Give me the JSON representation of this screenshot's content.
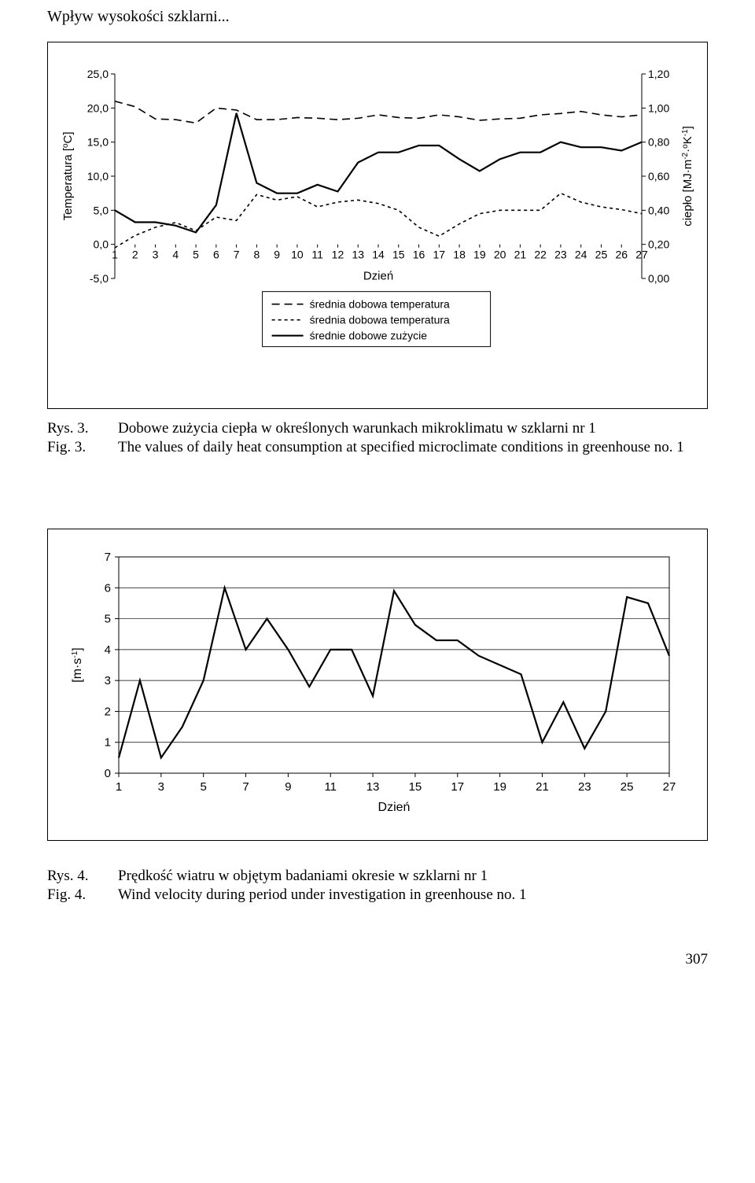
{
  "header": "Wpływ wysokości szklarni...",
  "chart1": {
    "type": "line",
    "left_axis_label": "Temperatura [oC]",
    "right_axis_label": "ciepło [MJ·m-2·oK-1]",
    "x_axis_label": "Dzień",
    "x_categories": [
      "1",
      "2",
      "3",
      "4",
      "5",
      "6",
      "7",
      "8",
      "9",
      "10",
      "11",
      "12",
      "13",
      "14",
      "15",
      "16",
      "17",
      "18",
      "19",
      "20",
      "21",
      "22",
      "23",
      "24",
      "25",
      "26",
      "27"
    ],
    "left_ticks": [
      "-5,0",
      "0,0",
      "5,0",
      "10,0",
      "15,0",
      "20,0",
      "25,0"
    ],
    "left_values": [
      -5,
      0,
      5,
      10,
      15,
      20,
      25
    ],
    "right_ticks": [
      "0,00",
      "0,20",
      "0,40",
      "0,60",
      "0,80",
      "1,00",
      "1,20"
    ],
    "right_values": [
      0,
      0.2,
      0.4,
      0.6,
      0.8,
      1.0,
      1.2
    ],
    "series": {
      "longdash": {
        "label": "średnia dobowa temperatura",
        "dash": "10,6",
        "width": 1.6,
        "color": "#000000",
        "axis": "left",
        "values": [
          21.0,
          20.2,
          18.4,
          18.3,
          17.8,
          20.0,
          19.7,
          18.3,
          18.3,
          18.6,
          18.5,
          18.3,
          18.5,
          19.0,
          18.6,
          18.5,
          19.0,
          18.7,
          18.2,
          18.4,
          18.5,
          19.0,
          19.2,
          19.5,
          19.0,
          18.7,
          19.0
        ]
      },
      "shortdash": {
        "label": "średnia dobowa temperatura",
        "dash": "4,4",
        "width": 1.6,
        "color": "#000000",
        "axis": "left",
        "values": [
          -0.5,
          1.3,
          2.5,
          3.2,
          2.0,
          4.0,
          3.5,
          7.3,
          6.5,
          7.0,
          5.5,
          6.2,
          6.5,
          6.0,
          5.0,
          2.5,
          1.2,
          3.0,
          4.5,
          5.0,
          5.0,
          5.0,
          7.5,
          6.2,
          5.5,
          5.1,
          4.5
        ]
      },
      "solid": {
        "label": "średnie dobowe zużycie",
        "dash": "",
        "width": 2.2,
        "color": "#000000",
        "axis": "right",
        "values": [
          0.4,
          0.33,
          0.33,
          0.31,
          0.27,
          0.43,
          0.97,
          0.56,
          0.5,
          0.5,
          0.55,
          0.51,
          0.68,
          0.74,
          0.74,
          0.78,
          0.78,
          0.7,
          0.63,
          0.7,
          0.74,
          0.74,
          0.8,
          0.77,
          0.77,
          0.75,
          0.8
        ]
      }
    },
    "plot_bg": "#ffffff",
    "tick_fontsize": 14,
    "label_fontsize": 15
  },
  "caption1_rys_label": "Rys. 3.",
  "caption1_rys_text": "Dobowe zużycia ciepła w określonych warunkach mikroklimatu w szklarni nr 1",
  "caption1_fig_label": "Fig. 3.",
  "caption1_fig_text": "The values of daily heat consumption at specified microclimate conditions in greenhouse no. 1",
  "chart2": {
    "type": "line",
    "y_axis_label": "[m·s-1]",
    "x_axis_label": "Dzień",
    "x_categories": [
      "1",
      "3",
      "5",
      "7",
      "9",
      "11",
      "13",
      "15",
      "17",
      "19",
      "21",
      "23",
      "25",
      "27"
    ],
    "x_all": [
      1,
      2,
      3,
      4,
      5,
      6,
      7,
      8,
      9,
      10,
      11,
      12,
      13,
      14,
      15,
      16,
      17,
      18,
      19,
      20,
      21,
      22,
      23,
      24,
      25,
      26,
      27
    ],
    "y_ticks": [
      0,
      1,
      2,
      3,
      4,
      5,
      6,
      7
    ],
    "series": {
      "wind": {
        "dash": "",
        "width": 2.2,
        "color": "#000000",
        "values": [
          0.5,
          3.0,
          0.5,
          1.5,
          3.0,
          6.0,
          4.0,
          5.0,
          4.0,
          2.8,
          4.0,
          4.0,
          2.5,
          5.9,
          4.8,
          4.3,
          4.3,
          3.8,
          3.5,
          3.2,
          1.0,
          2.3,
          0.8,
          2.0,
          5.7,
          5.5,
          3.8
        ]
      }
    },
    "plot_bg": "#ffffff",
    "grid_color": "#000000",
    "tick_fontsize": 15,
    "label_fontsize": 16
  },
  "caption2_rys_label": "Rys. 4.",
  "caption2_rys_text": "Prędkość wiatru w objętym badaniami okresie w szklarni nr 1",
  "caption2_fig_label": "Fig. 4.",
  "caption2_fig_text": "Wind velocity during period under investigation in greenhouse no. 1",
  "page_number": "307"
}
